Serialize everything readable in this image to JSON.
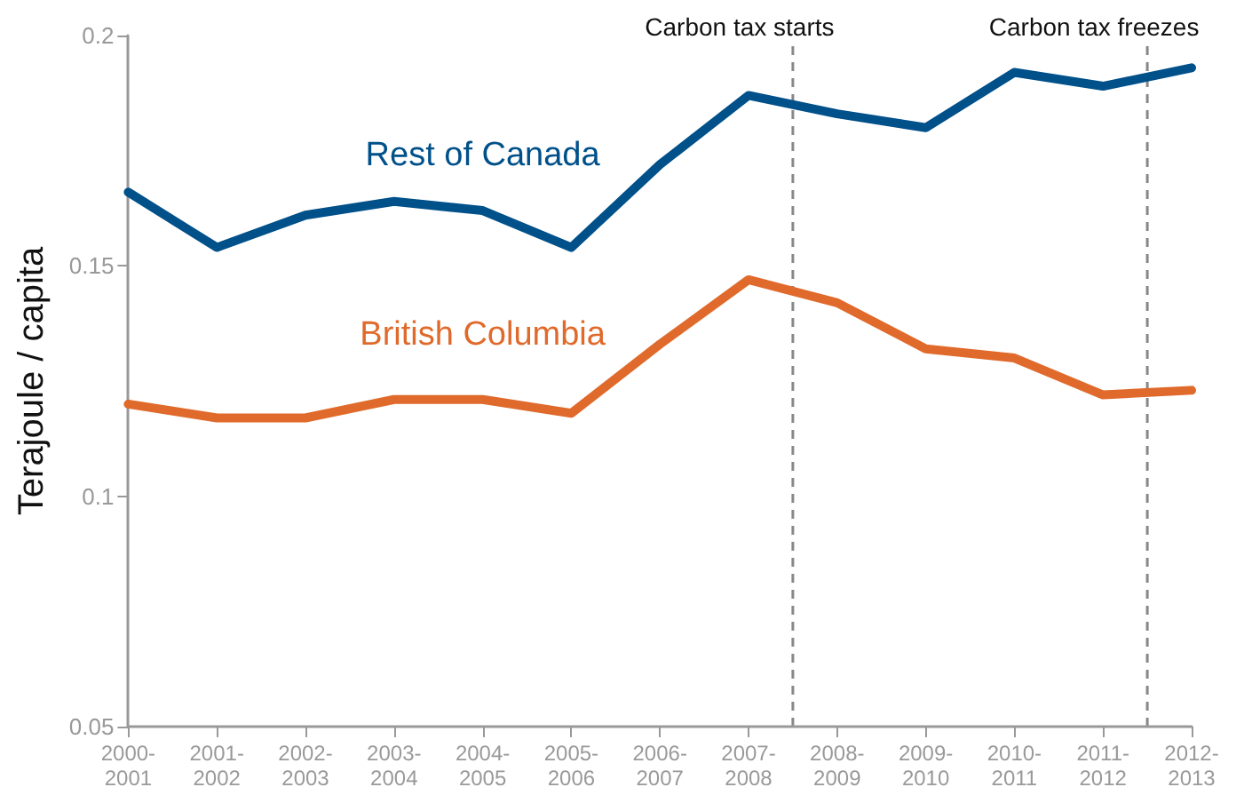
{
  "chart_data": {
    "type": "line",
    "ylabel": "Terajoule / capita",
    "categories": [
      "2000-2001",
      "2001-2002",
      "2002-2003",
      "2003-2004",
      "2004-2005",
      "2005-2006",
      "2006-2007",
      "2007-2008",
      "2008-2009",
      "2009-2010",
      "2010-2011",
      "2011-2012",
      "2012-2013"
    ],
    "series": [
      {
        "name": "Rest of Canada",
        "color": "#00508a",
        "values": [
          0.166,
          0.154,
          0.161,
          0.164,
          0.162,
          0.154,
          0.172,
          0.187,
          0.183,
          0.18,
          0.192,
          0.189,
          0.193
        ]
      },
      {
        "name": "British Columbia",
        "color": "#e06a2b",
        "values": [
          0.12,
          0.117,
          0.117,
          0.121,
          0.121,
          0.118,
          0.133,
          0.147,
          0.142,
          0.132,
          0.13,
          0.122,
          0.123
        ]
      }
    ],
    "ylim": [
      0.05,
      0.2
    ],
    "yticks": [
      0.05,
      0.1,
      0.15,
      0.2
    ],
    "annotations": [
      "Carbon tax starts",
      "Carbon tax freezes"
    ],
    "grid": false,
    "legend": false,
    "marker": "none",
    "line_style": "solid"
  }
}
